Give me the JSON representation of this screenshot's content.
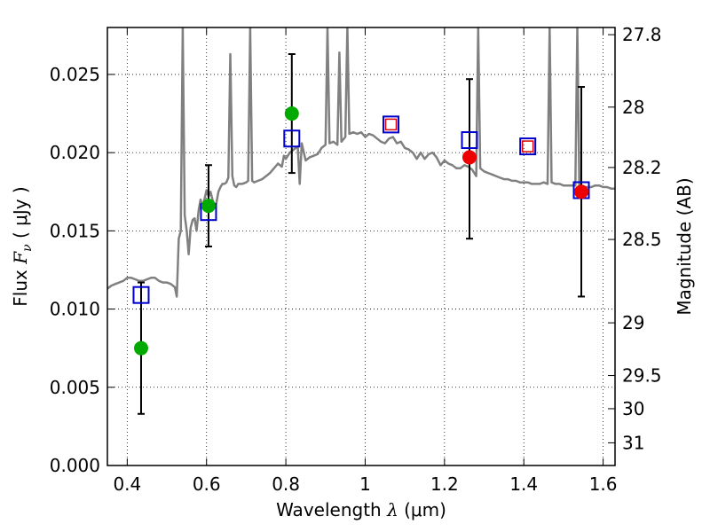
{
  "chart_data": {
    "type": "scatter",
    "xlabel": {
      "pre": "Wavelength ",
      "sym": "λ",
      "unit": " (μm)"
    },
    "ylabel": {
      "pre": "Flux ",
      "sym": "F",
      "sub": "ν",
      "unit": " ( μJy )"
    },
    "y2label": "Magnitude (AB)",
    "xlim": [
      0.35,
      1.63
    ],
    "ylim": [
      0.0,
      0.028
    ],
    "grid": true,
    "x_ticks": [
      {
        "value": 0.4,
        "label": "0.4"
      },
      {
        "value": 0.6,
        "label": "0.6"
      },
      {
        "value": 0.8,
        "label": "0.8"
      },
      {
        "value": 1.0,
        "label": "1"
      },
      {
        "value": 1.2,
        "label": "1.2"
      },
      {
        "value": 1.4,
        "label": "1.4"
      },
      {
        "value": 1.6,
        "label": "1.6"
      }
    ],
    "y_ticks": [
      {
        "value": 0.0,
        "label": "0.000"
      },
      {
        "value": 0.005,
        "label": "0.005"
      },
      {
        "value": 0.01,
        "label": "0.010"
      },
      {
        "value": 0.015,
        "label": "0.015"
      },
      {
        "value": 0.02,
        "label": "0.020"
      },
      {
        "value": 0.025,
        "label": "0.025"
      }
    ],
    "y2_ticks": [
      {
        "flux": 0.02754,
        "label": "27.8"
      },
      {
        "flux": 0.02291,
        "label": "28"
      },
      {
        "flux": 0.01905,
        "label": "28.2"
      },
      {
        "flux": 0.01445,
        "label": "28.5"
      },
      {
        "flux": 0.00912,
        "label": "29"
      },
      {
        "flux": 0.00575,
        "label": "29.5"
      },
      {
        "flux": 0.00363,
        "label": "30"
      },
      {
        "flux": 0.00145,
        "label": "31"
      }
    ],
    "series": [
      {
        "kind": "model-spectrum-line",
        "color": "#808080",
        "points": [
          [
            0.35,
            0.0113
          ],
          [
            0.36,
            0.0115
          ],
          [
            0.37,
            0.0116
          ],
          [
            0.38,
            0.0117
          ],
          [
            0.39,
            0.0118
          ],
          [
            0.4,
            0.012
          ],
          [
            0.41,
            0.012
          ],
          [
            0.42,
            0.0119
          ],
          [
            0.43,
            0.0118
          ],
          [
            0.44,
            0.0118
          ],
          [
            0.45,
            0.0119
          ],
          [
            0.46,
            0.012
          ],
          [
            0.47,
            0.012
          ],
          [
            0.48,
            0.0118
          ],
          [
            0.49,
            0.0117
          ],
          [
            0.5,
            0.0117
          ],
          [
            0.51,
            0.0116
          ],
          [
            0.52,
            0.0114
          ],
          [
            0.525,
            0.0108
          ],
          [
            0.53,
            0.0145
          ],
          [
            0.535,
            0.015
          ],
          [
            0.54,
            0.028
          ],
          [
            0.545,
            0.016
          ],
          [
            0.55,
            0.015
          ],
          [
            0.555,
            0.0135
          ],
          [
            0.56,
            0.0152
          ],
          [
            0.565,
            0.0157
          ],
          [
            0.57,
            0.0158
          ],
          [
            0.575,
            0.015
          ],
          [
            0.58,
            0.0163
          ],
          [
            0.585,
            0.017
          ],
          [
            0.59,
            0.0165
          ],
          [
            0.6,
            0.0176
          ],
          [
            0.605,
            0.0172
          ],
          [
            0.61,
            0.0175
          ],
          [
            0.615,
            0.017
          ],
          [
            0.62,
            0.0166
          ],
          [
            0.625,
            0.0168
          ],
          [
            0.63,
            0.0175
          ],
          [
            0.635,
            0.0178
          ],
          [
            0.64,
            0.018
          ],
          [
            0.645,
            0.018
          ],
          [
            0.65,
            0.0181
          ],
          [
            0.655,
            0.0184
          ],
          [
            0.66,
            0.0263
          ],
          [
            0.665,
            0.0185
          ],
          [
            0.67,
            0.0179
          ],
          [
            0.675,
            0.0178
          ],
          [
            0.68,
            0.018
          ],
          [
            0.69,
            0.018
          ],
          [
            0.7,
            0.0181
          ],
          [
            0.705,
            0.0182
          ],
          [
            0.71,
            0.028
          ],
          [
            0.715,
            0.0182
          ],
          [
            0.72,
            0.0181
          ],
          [
            0.73,
            0.0182
          ],
          [
            0.74,
            0.0183
          ],
          [
            0.75,
            0.0185
          ],
          [
            0.76,
            0.0187
          ],
          [
            0.77,
            0.019
          ],
          [
            0.78,
            0.0193
          ],
          [
            0.79,
            0.0191
          ],
          [
            0.795,
            0.0198
          ],
          [
            0.8,
            0.0196
          ],
          [
            0.81,
            0.02
          ],
          [
            0.82,
            0.0202
          ],
          [
            0.83,
            0.0204
          ],
          [
            0.835,
            0.018
          ],
          [
            0.84,
            0.0206
          ],
          [
            0.85,
            0.0195
          ],
          [
            0.86,
            0.0197
          ],
          [
            0.87,
            0.0198
          ],
          [
            0.88,
            0.0199
          ],
          [
            0.89,
            0.0203
          ],
          [
            0.9,
            0.0205
          ],
          [
            0.905,
            0.028
          ],
          [
            0.91,
            0.0206
          ],
          [
            0.92,
            0.0207
          ],
          [
            0.93,
            0.0205
          ],
          [
            0.935,
            0.0264
          ],
          [
            0.94,
            0.0207
          ],
          [
            0.95,
            0.021
          ],
          [
            0.955,
            0.028
          ],
          [
            0.96,
            0.0212
          ],
          [
            0.97,
            0.0213
          ],
          [
            0.98,
            0.0212
          ],
          [
            0.99,
            0.0213
          ],
          [
            1.0,
            0.021
          ],
          [
            1.01,
            0.0212
          ],
          [
            1.02,
            0.0211
          ],
          [
            1.03,
            0.0209
          ],
          [
            1.04,
            0.0207
          ],
          [
            1.05,
            0.0206
          ],
          [
            1.06,
            0.0209
          ],
          [
            1.07,
            0.021
          ],
          [
            1.08,
            0.0206
          ],
          [
            1.09,
            0.0207
          ],
          [
            1.1,
            0.0203
          ],
          [
            1.11,
            0.0202
          ],
          [
            1.12,
            0.02
          ],
          [
            1.13,
            0.0196
          ],
          [
            1.14,
            0.02
          ],
          [
            1.15,
            0.0196
          ],
          [
            1.16,
            0.0199
          ],
          [
            1.17,
            0.02
          ],
          [
            1.18,
            0.0197
          ],
          [
            1.19,
            0.0192
          ],
          [
            1.2,
            0.0195
          ],
          [
            1.21,
            0.0193
          ],
          [
            1.22,
            0.0192
          ],
          [
            1.23,
            0.019
          ],
          [
            1.24,
            0.019
          ],
          [
            1.25,
            0.0192
          ],
          [
            1.26,
            0.0191
          ],
          [
            1.27,
            0.0189
          ],
          [
            1.28,
            0.0185
          ],
          [
            1.285,
            0.028
          ],
          [
            1.29,
            0.019
          ],
          [
            1.3,
            0.0188
          ],
          [
            1.31,
            0.0187
          ],
          [
            1.32,
            0.0186
          ],
          [
            1.33,
            0.0185
          ],
          [
            1.34,
            0.0184
          ],
          [
            1.35,
            0.0183
          ],
          [
            1.36,
            0.0183
          ],
          [
            1.37,
            0.0182
          ],
          [
            1.38,
            0.0182
          ],
          [
            1.39,
            0.0181
          ],
          [
            1.4,
            0.0181
          ],
          [
            1.41,
            0.0181
          ],
          [
            1.42,
            0.018
          ],
          [
            1.43,
            0.018
          ],
          [
            1.44,
            0.018
          ],
          [
            1.45,
            0.0181
          ],
          [
            1.46,
            0.018
          ],
          [
            1.465,
            0.028
          ],
          [
            1.47,
            0.0181
          ],
          [
            1.48,
            0.018
          ],
          [
            1.49,
            0.018
          ],
          [
            1.5,
            0.0179
          ],
          [
            1.51,
            0.0179
          ],
          [
            1.52,
            0.0179
          ],
          [
            1.53,
            0.0179
          ],
          [
            1.535,
            0.028
          ],
          [
            1.54,
            0.0178
          ],
          [
            1.55,
            0.0178
          ],
          [
            1.56,
            0.0178
          ],
          [
            1.57,
            0.0178
          ],
          [
            1.58,
            0.0179
          ],
          [
            1.59,
            0.0179
          ],
          [
            1.6,
            0.0178
          ],
          [
            1.61,
            0.0178
          ],
          [
            1.62,
            0.0177
          ],
          [
            1.63,
            0.0177
          ]
        ]
      },
      {
        "kind": "errorbars",
        "color": "#000000",
        "points": [
          {
            "x": 0.435,
            "low": 0.0033,
            "high": 0.0117
          },
          {
            "x": 0.605,
            "low": 0.014,
            "high": 0.0192
          },
          {
            "x": 0.815,
            "low": 0.0187,
            "high": 0.0263
          },
          {
            "x": 1.263,
            "low": 0.0145,
            "high": 0.0247
          },
          {
            "x": 1.545,
            "low": 0.0108,
            "high": 0.0242
          }
        ]
      },
      {
        "kind": "open-square-blue",
        "color": "#0000cc",
        "points": [
          [
            0.435,
            0.0109
          ],
          [
            0.605,
            0.0162
          ],
          [
            0.815,
            0.0209
          ],
          [
            1.065,
            0.0218
          ],
          [
            1.263,
            0.0208
          ],
          [
            1.41,
            0.0204
          ],
          [
            1.545,
            0.0176
          ]
        ]
      },
      {
        "kind": "filled-circle-green",
        "color": "#00aa00",
        "points": [
          [
            0.435,
            0.0075
          ],
          [
            0.605,
            0.0166
          ],
          [
            0.815,
            0.0225
          ]
        ]
      },
      {
        "kind": "filled-circle-red",
        "color": "#ee0000",
        "points": [
          [
            1.263,
            0.0197
          ],
          [
            1.545,
            0.0175
          ]
        ]
      },
      {
        "kind": "open-square-red",
        "color": "#dd0000",
        "points": [
          [
            1.065,
            0.0218
          ],
          [
            1.41,
            0.0204
          ]
        ]
      }
    ]
  }
}
